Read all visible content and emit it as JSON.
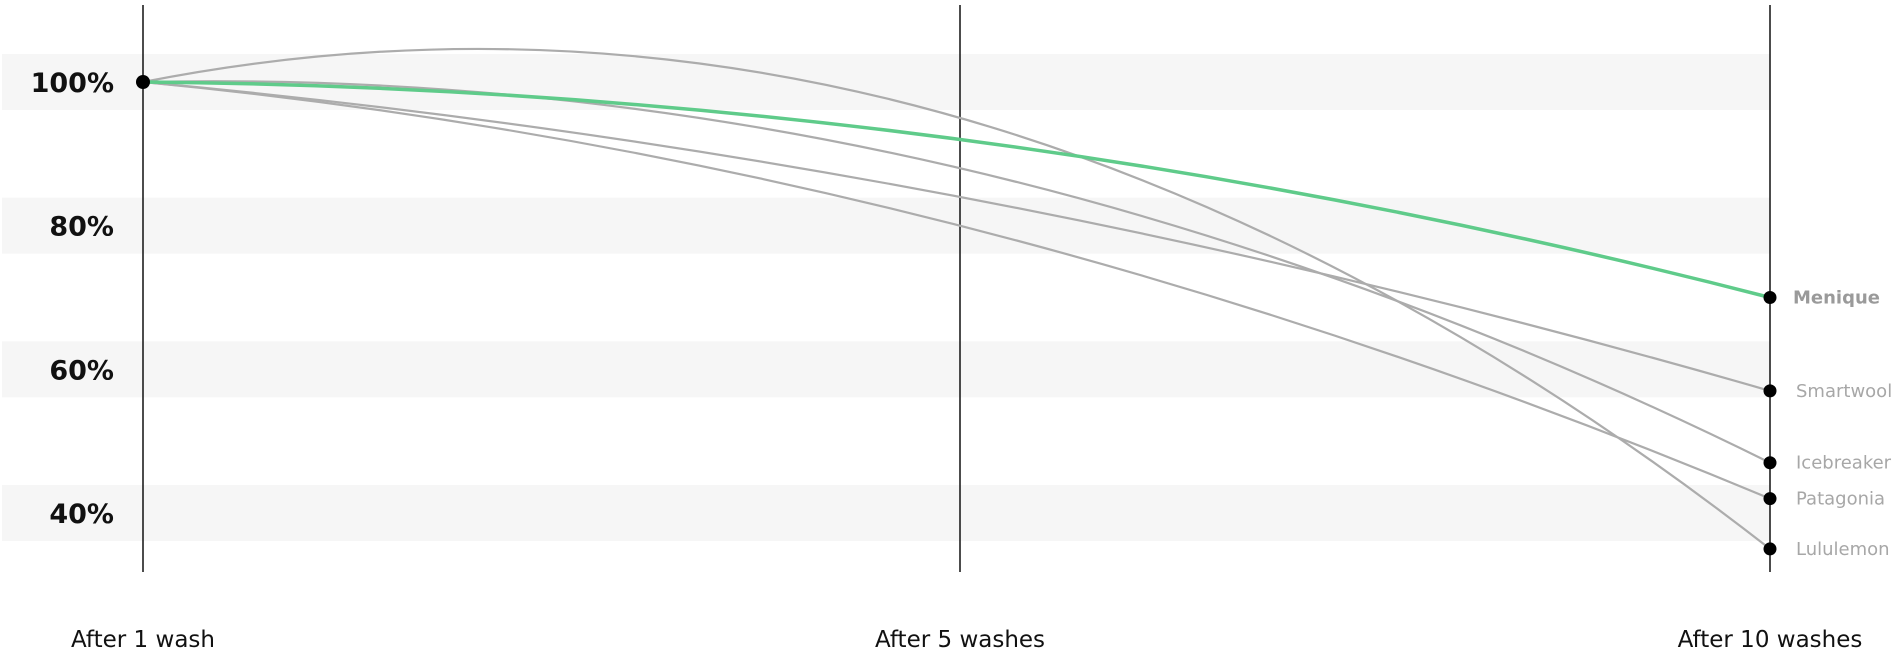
{
  "chart_data": {
    "type": "line",
    "title": "",
    "xlabel": "",
    "ylabel": "",
    "categories": [
      "After 1 wash",
      "After 5 washes",
      "After 10 washes"
    ],
    "y_ticks": [
      "100%",
      "80%",
      "60%",
      "40%"
    ],
    "ylim": [
      33,
      110
    ],
    "grid": "alternating horizontal bands",
    "legend": "labels at right end of lines",
    "colors": {
      "highlight": "#5fcb8a",
      "muted": "#acacac",
      "band": "#f6f6f6",
      "axis": "#111111",
      "marker": "#000000"
    },
    "series": [
      {
        "name": "Menique",
        "values": [
          100,
          92,
          70
        ],
        "highlight": true
      },
      {
        "name": "Smartwool",
        "values": [
          100,
          84,
          57
        ],
        "highlight": false
      },
      {
        "name": "Icebreaker",
        "values": [
          100,
          88,
          47
        ],
        "highlight": false
      },
      {
        "name": "Patagonia",
        "values": [
          100,
          80,
          42
        ],
        "highlight": false
      },
      {
        "name": "Lululemon",
        "values": [
          100,
          95,
          35
        ],
        "highlight": false
      }
    ]
  }
}
